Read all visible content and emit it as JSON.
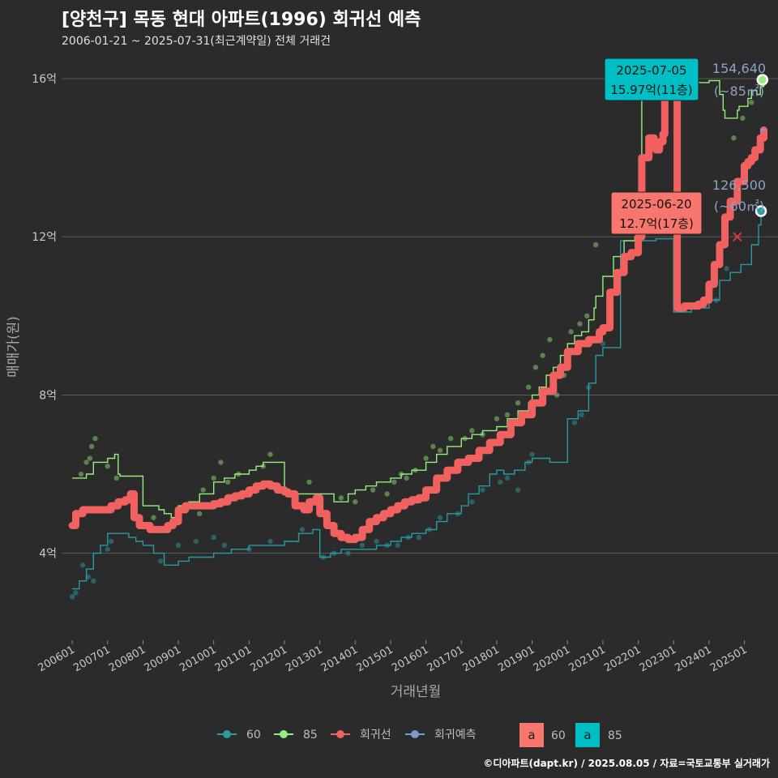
{
  "header": {
    "title": "[양천구] 목동 현대 아파트(1996) 회귀선 예측",
    "subtitle": "2006-01-21 ~ 2025-07-31(최근계약일) 전체 거래건"
  },
  "footer": {
    "text": "©디아파트(dapt.kr) / 2025.08.05 / 자료=국토교통부 실거래가"
  },
  "colors": {
    "background": "#2b2b2b",
    "grid": "#5a5a5a",
    "series60": "#2a9aa3",
    "series85": "#96ee7e",
    "regression": "#f0615f",
    "forecast": "#7e9acb",
    "label85_bg": "#00bfc4",
    "label60_bg": "#f8766d"
  },
  "chart_data": {
    "type": "line",
    "title": "[양천구] 목동 현대 아파트(1996) 회귀선 예측",
    "xlabel": "거래년월",
    "ylabel": "매매가(원)",
    "xlim": [
      2005.7,
      2025.95
    ],
    "ylim": [
      1.8,
      16.8
    ],
    "yticks": [
      4,
      8,
      12,
      16
    ],
    "ytick_labels": [
      "4억",
      "8억",
      "12억",
      "16억"
    ],
    "xticks": [
      2006,
      2007,
      2008,
      2009,
      2010,
      2011,
      2012,
      2013,
      2014,
      2015,
      2016,
      2017,
      2018,
      2019,
      2020,
      2021,
      2022,
      2023,
      2024,
      2025
    ],
    "xtick_labels": [
      "200601",
      "200701",
      "200801",
      "200901",
      "201001",
      "201101",
      "201201",
      "201301",
      "201401",
      "201501",
      "201601",
      "201701",
      "201801",
      "201901",
      "202001",
      "202101",
      "202201",
      "202301",
      "202401",
      "202501"
    ],
    "legend": {
      "position": "bottom",
      "items": [
        {
          "key": "60",
          "label": "60"
        },
        {
          "key": "85",
          "label": "85"
        },
        {
          "key": "regression",
          "label": "회귀선"
        },
        {
          "key": "forecast",
          "label": "회귀예측"
        }
      ],
      "fill_items": [
        {
          "symbol": "a",
          "label": "60"
        },
        {
          "symbol": "a",
          "label": "85"
        }
      ]
    },
    "series": [
      {
        "name": "85",
        "unit": "억",
        "x": [
          2006.0,
          2006.2,
          2006.4,
          2006.6,
          2006.8,
          2007.0,
          2007.2,
          2007.3,
          2007.35,
          2008.0,
          2008.2,
          2008.45,
          2008.6,
          2008.8,
          2009.0,
          2009.3,
          2009.6,
          2010.0,
          2010.3,
          2010.6,
          2011.0,
          2011.2,
          2011.4,
          2011.6,
          2011.8,
          2012.0,
          2012.5,
          2013.0,
          2013.4,
          2013.8,
          2014.0,
          2014.3,
          2014.6,
          2015.0,
          2015.3,
          2015.6,
          2016.0,
          2016.3,
          2016.6,
          2017.0,
          2017.3,
          2017.6,
          2018.0,
          2018.3,
          2018.6,
          2018.9,
          2019.0,
          2019.2,
          2019.4,
          2019.6,
          2019.8,
          2020.0,
          2020.2,
          2020.4,
          2020.6,
          2020.75,
          2020.8,
          2021.0,
          2021.3,
          2021.6,
          2021.9,
          2022.1,
          2022.5,
          2023.0,
          2023.6,
          2024.0,
          2024.3,
          2024.4,
          2024.45,
          2024.6,
          2024.8,
          2024.85,
          2025.0,
          2025.1,
          2025.2,
          2025.35,
          2025.45,
          2025.55
        ],
        "y": [
          5.9,
          5.9,
          6.0,
          6.3,
          6.3,
          6.4,
          6.5,
          6.0,
          5.95,
          5.2,
          5.2,
          5.1,
          5.0,
          4.9,
          5.2,
          5.3,
          5.5,
          5.8,
          5.9,
          6.0,
          6.1,
          6.2,
          6.3,
          6.3,
          6.3,
          5.5,
          5.5,
          5.5,
          5.3,
          5.5,
          5.6,
          5.7,
          5.8,
          5.9,
          6.0,
          6.1,
          6.3,
          6.5,
          6.7,
          6.9,
          7.0,
          7.1,
          7.2,
          7.4,
          7.6,
          7.8,
          8.0,
          8.2,
          8.5,
          8.7,
          9.0,
          9.3,
          9.5,
          9.6,
          9.9,
          10.2,
          10.5,
          11.0,
          11.5,
          11.9,
          12.0,
          15.5,
          15.8,
          15.9,
          15.9,
          15.95,
          15.6,
          15.2,
          15.0,
          15.0,
          15.2,
          15.3,
          15.3,
          15.5,
          15.7,
          15.6,
          15.8,
          15.97
        ]
      },
      {
        "name": "60",
        "unit": "억",
        "x": [
          2006.0,
          2006.2,
          2006.4,
          2006.6,
          2006.8,
          2007.0,
          2007.2,
          2007.35,
          2007.6,
          2007.8,
          2008.0,
          2008.3,
          2008.6,
          2009.0,
          2009.3,
          2009.6,
          2010.0,
          2010.5,
          2011.0,
          2011.3,
          2011.6,
          2012.0,
          2012.4,
          2012.8,
          2013.0,
          2013.3,
          2013.6,
          2014.0,
          2014.3,
          2014.6,
          2015.0,
          2015.3,
          2015.6,
          2016.0,
          2016.3,
          2016.6,
          2017.0,
          2017.2,
          2017.5,
          2017.8,
          2018.0,
          2018.2,
          2018.5,
          2018.8,
          2019.0,
          2019.5,
          2020.0,
          2020.3,
          2020.6,
          2020.8,
          2021.0,
          2021.5,
          2022.0,
          2022.5,
          2023.0,
          2023.5,
          2024.0,
          2024.3,
          2024.6,
          2024.9,
          2025.0,
          2025.2,
          2025.4,
          2025.47
        ],
        "y": [
          3.1,
          3.3,
          3.6,
          4.0,
          4.2,
          4.5,
          4.5,
          4.5,
          4.4,
          4.3,
          4.2,
          4.0,
          3.7,
          3.8,
          3.9,
          3.9,
          4.0,
          4.1,
          4.2,
          4.2,
          4.2,
          4.3,
          4.5,
          4.6,
          3.9,
          4.0,
          4.1,
          4.1,
          4.1,
          4.2,
          4.3,
          4.4,
          4.5,
          4.6,
          4.8,
          5.0,
          5.2,
          5.5,
          5.7,
          6.0,
          6.1,
          6.0,
          6.1,
          6.3,
          6.4,
          6.3,
          7.4,
          7.6,
          8.3,
          9.0,
          9.2,
          11.9,
          11.9,
          11.95,
          10.1,
          10.2,
          10.4,
          10.9,
          11.1,
          11.3,
          11.3,
          11.8,
          12.3,
          12.65
        ]
      },
      {
        "name": "회귀선",
        "unit": "억",
        "x": [
          2006.0,
          2006.1,
          2006.3,
          2006.6,
          2006.9,
          2007.1,
          2007.3,
          2007.5,
          2007.65,
          2007.75,
          2007.9,
          2008.2,
          2008.5,
          2008.7,
          2008.85,
          2009.0,
          2009.2,
          2009.5,
          2009.8,
          2010.0,
          2010.2,
          2010.4,
          2010.6,
          2010.8,
          2011.0,
          2011.2,
          2011.4,
          2011.6,
          2011.8,
          2012.0,
          2012.1,
          2012.3,
          2012.55,
          2012.7,
          2012.9,
          2013.0,
          2013.2,
          2013.4,
          2013.6,
          2013.8,
          2014.0,
          2014.2,
          2014.4,
          2014.6,
          2014.8,
          2015.0,
          2015.2,
          2015.4,
          2015.6,
          2015.8,
          2016.0,
          2016.3,
          2016.6,
          2016.9,
          2017.2,
          2017.5,
          2017.8,
          2018.1,
          2018.4,
          2018.7,
          2019.0,
          2019.3,
          2019.6,
          2019.8,
          2020.0,
          2020.3,
          2020.6,
          2020.9,
          2021.0,
          2021.2,
          2021.4,
          2021.6,
          2021.8,
          2022.0,
          2022.1,
          2022.3,
          2022.45,
          2022.5,
          2022.6,
          2022.7,
          2022.75,
          2022.85,
          2023.0,
          2023.1,
          2023.3,
          2023.5,
          2023.7,
          2023.85,
          2024.0,
          2024.15,
          2024.3,
          2024.45,
          2024.6,
          2024.8,
          2025.0,
          2025.1,
          2025.2,
          2025.3,
          2025.45,
          2025.55
        ],
        "y": [
          4.7,
          5.0,
          5.1,
          5.1,
          5.1,
          5.2,
          5.3,
          5.35,
          5.5,
          4.9,
          4.7,
          4.6,
          4.6,
          4.7,
          4.8,
          5.1,
          5.2,
          5.2,
          5.2,
          5.25,
          5.3,
          5.4,
          5.45,
          5.5,
          5.6,
          5.7,
          5.75,
          5.7,
          5.6,
          5.55,
          5.5,
          5.2,
          5.1,
          5.3,
          5.4,
          5.0,
          4.7,
          4.5,
          4.4,
          4.35,
          4.4,
          4.6,
          4.8,
          4.9,
          5.0,
          5.1,
          5.2,
          5.3,
          5.35,
          5.4,
          5.6,
          5.9,
          6.1,
          6.3,
          6.4,
          6.6,
          6.8,
          7.0,
          7.3,
          7.5,
          7.8,
          8.1,
          8.5,
          8.7,
          9.1,
          9.3,
          9.4,
          9.6,
          9.7,
          10.6,
          11.1,
          11.5,
          11.6,
          12.0,
          14.0,
          14.5,
          14.3,
          14.2,
          14.4,
          14.6,
          15.9,
          16.2,
          16.3,
          10.2,
          10.25,
          10.25,
          10.3,
          10.4,
          10.8,
          11.3,
          11.8,
          12.5,
          12.9,
          13.4,
          13.8,
          13.9,
          14.0,
          14.2,
          14.5,
          14.7
        ]
      },
      {
        "name": "회귀예측",
        "unit": "억",
        "x": [
          2025.45,
          2025.6
        ],
        "y": [
          14.7,
          14.7
        ]
      }
    ],
    "scatter85": {
      "x": [
        2006.25,
        2006.4,
        2006.5,
        2006.55,
        2006.65,
        2007.0,
        2007.25,
        2008.3,
        2009.6,
        2009.7,
        2010.0,
        2010.2,
        2010.4,
        2010.7,
        2011.4,
        2011.6,
        2012.3,
        2012.7,
        2013.6,
        2014.0,
        2014.5,
        2014.9,
        2015.1,
        2015.3,
        2015.45,
        2015.7,
        2016.0,
        2016.2,
        2016.4,
        2016.7,
        2017.1,
        2017.3,
        2017.6,
        2018.0,
        2018.3,
        2018.6,
        2018.9,
        2019.1,
        2019.3,
        2019.5,
        2019.7,
        2019.9,
        2020.1,
        2020.35,
        2020.55,
        2020.8,
        2024.7,
        2024.95,
        2025.2,
        2025.45
      ],
      "y": [
        6.0,
        6.3,
        6.4,
        6.7,
        6.9,
        6.2,
        5.9,
        4.9,
        5.0,
        5.6,
        5.9,
        6.3,
        5.8,
        6.0,
        6.2,
        6.5,
        5.5,
        5.8,
        5.4,
        5.3,
        5.6,
        5.5,
        5.8,
        6.0,
        5.9,
        6.1,
        6.4,
        6.7,
        6.6,
        6.9,
        6.9,
        7.1,
        7.0,
        7.4,
        7.5,
        7.8,
        8.2,
        8.7,
        9.0,
        9.4,
        8.0,
        8.5,
        9.6,
        9.8,
        10.0,
        11.8,
        14.5,
        15.0,
        15.4,
        15.97
      ]
    },
    "scatter60": {
      "x": [
        2006.0,
        2006.1,
        2006.3,
        2006.45,
        2006.6,
        2007.0,
        2007.1,
        2008.5,
        2009.0,
        2009.5,
        2010.0,
        2010.3,
        2011.0,
        2011.6,
        2012.5,
        2013.1,
        2013.4,
        2013.8,
        2014.2,
        2014.6,
        2014.9,
        2015.2,
        2015.5,
        2015.8,
        2016.1,
        2016.4,
        2016.9,
        2017.3,
        2017.6,
        2018.1,
        2018.3,
        2018.6,
        2018.9,
        2019.0,
        2020.2,
        2020.4,
        2020.6,
        2021.0,
        2023.8,
        2024.2,
        2024.5,
        2025.47
      ],
      "y": [
        2.9,
        3.0,
        3.7,
        3.4,
        3.3,
        4.1,
        4.3,
        3.8,
        4.2,
        4.3,
        4.4,
        4.2,
        4.1,
        4.3,
        4.6,
        3.9,
        4.0,
        4.0,
        4.2,
        4.3,
        4.2,
        4.2,
        4.4,
        4.4,
        4.6,
        4.9,
        5.0,
        5.3,
        5.6,
        5.8,
        5.9,
        5.6,
        6.3,
        6.5,
        7.3,
        7.5,
        8.2,
        9.3,
        10.3,
        10.4,
        11.2,
        12.65
      ]
    },
    "annotations": [
      {
        "date": "2025-07-05",
        "price_text": "15.97억(11층)",
        "x": 2025.51,
        "y": 15.97,
        "series": "85"
      },
      {
        "date": "2025-06-20",
        "price_text": "12.7억(17층)",
        "x": 2025.47,
        "y": 12.65,
        "series": "60"
      }
    ],
    "side_labels": [
      {
        "value": "154,640",
        "area": "(~85㎡)",
        "series": "85"
      },
      {
        "value": "126,500",
        "area": "(~60㎡)",
        "series": "60"
      }
    ],
    "cross_marker": {
      "x": 2024.8,
      "y": 12.0
    }
  }
}
